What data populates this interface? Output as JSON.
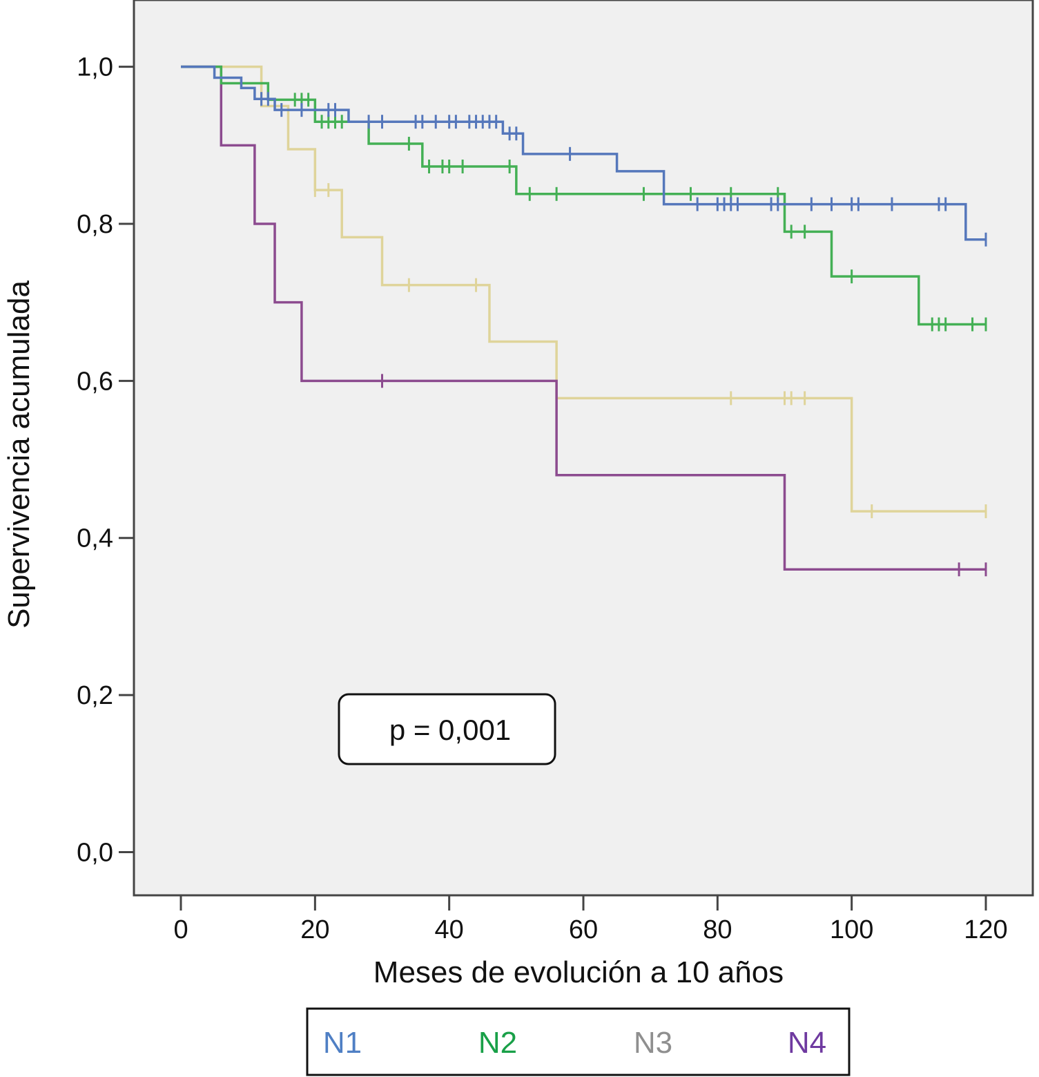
{
  "chart_data": {
    "type": "line",
    "subtype": "kaplan-meier",
    "title": "",
    "xlabel": "Meses de evolución a 10 años",
    "ylabel": "Supervivencia acumulada",
    "xlim": [
      -7,
      127
    ],
    "ylim": [
      -0.055,
      1.085
    ],
    "xticks": [
      0,
      20,
      40,
      60,
      80,
      100,
      120
    ],
    "yticks": [
      0.0,
      0.2,
      0.4,
      0.6,
      0.8,
      1.0
    ],
    "ytick_labels": [
      "0,0",
      "0,2",
      "0,4",
      "0,6",
      "0,8",
      "1,0"
    ],
    "xtick_labels": [
      "0",
      "20",
      "40",
      "60",
      "80",
      "100",
      "120"
    ],
    "plot_background": "#f0f0f0",
    "annotation": "p = 0,001",
    "series": [
      {
        "name": "N1",
        "color": "#5577bb",
        "legend_color": "#4f7fc4",
        "steps": [
          [
            0,
            1.0
          ],
          [
            5,
            0.986
          ],
          [
            9,
            0.973
          ],
          [
            11,
            0.959
          ],
          [
            14,
            0.945
          ],
          [
            25,
            0.93
          ],
          [
            48,
            0.915
          ],
          [
            51,
            0.889
          ],
          [
            65,
            0.867
          ],
          [
            72,
            0.825
          ],
          [
            117,
            0.78
          ],
          [
            120,
            0.78
          ]
        ],
        "censored": [
          [
            12,
            0.959
          ],
          [
            13,
            0.959
          ],
          [
            15,
            0.945
          ],
          [
            18,
            0.945
          ],
          [
            22,
            0.945
          ],
          [
            23,
            0.945
          ],
          [
            28,
            0.93
          ],
          [
            30,
            0.93
          ],
          [
            35,
            0.93
          ],
          [
            36,
            0.93
          ],
          [
            38,
            0.93
          ],
          [
            40,
            0.93
          ],
          [
            41,
            0.93
          ],
          [
            43,
            0.93
          ],
          [
            44,
            0.93
          ],
          [
            45,
            0.93
          ],
          [
            46,
            0.93
          ],
          [
            47,
            0.93
          ],
          [
            49,
            0.915
          ],
          [
            50,
            0.915
          ],
          [
            58,
            0.889
          ],
          [
            77,
            0.825
          ],
          [
            80,
            0.825
          ],
          [
            81,
            0.825
          ],
          [
            82,
            0.825
          ],
          [
            83,
            0.825
          ],
          [
            88,
            0.825
          ],
          [
            89,
            0.825
          ],
          [
            94,
            0.825
          ],
          [
            97,
            0.825
          ],
          [
            100,
            0.825
          ],
          [
            101,
            0.825
          ],
          [
            106,
            0.825
          ],
          [
            113,
            0.825
          ],
          [
            114,
            0.825
          ],
          [
            120,
            0.78
          ]
        ]
      },
      {
        "name": "N2",
        "color": "#44b055",
        "legend_color": "#19a048",
        "steps": [
          [
            0,
            1.0
          ],
          [
            6,
            0.979
          ],
          [
            13,
            0.958
          ],
          [
            20,
            0.93
          ],
          [
            28,
            0.902
          ],
          [
            36,
            0.873
          ],
          [
            50,
            0.838
          ],
          [
            90,
            0.79
          ],
          [
            97,
            0.733
          ],
          [
            110,
            0.672
          ],
          [
            120,
            0.672
          ]
        ],
        "censored": [
          [
            17,
            0.958
          ],
          [
            18,
            0.958
          ],
          [
            19,
            0.958
          ],
          [
            21,
            0.93
          ],
          [
            22,
            0.93
          ],
          [
            23,
            0.93
          ],
          [
            24,
            0.93
          ],
          [
            34,
            0.902
          ],
          [
            37,
            0.873
          ],
          [
            39,
            0.873
          ],
          [
            40,
            0.873
          ],
          [
            42,
            0.873
          ],
          [
            49,
            0.873
          ],
          [
            52,
            0.838
          ],
          [
            56,
            0.838
          ],
          [
            69,
            0.838
          ],
          [
            76,
            0.838
          ],
          [
            82,
            0.838
          ],
          [
            89,
            0.838
          ],
          [
            91,
            0.79
          ],
          [
            93,
            0.79
          ],
          [
            100,
            0.733
          ],
          [
            112,
            0.672
          ],
          [
            113,
            0.672
          ],
          [
            114,
            0.672
          ],
          [
            118,
            0.672
          ],
          [
            120,
            0.672
          ]
        ],
        "_": ""
      },
      {
        "name": "N3",
        "color": "#dfd49a",
        "legend_color": "#8f8f8f",
        "steps": [
          [
            0,
            1.0
          ],
          [
            12,
            0.95
          ],
          [
            16,
            0.895
          ],
          [
            20,
            0.843
          ],
          [
            24,
            0.783
          ],
          [
            30,
            0.722
          ],
          [
            46,
            0.65
          ],
          [
            56,
            0.578
          ],
          [
            100,
            0.434
          ],
          [
            120,
            0.434
          ]
        ],
        "censored": [
          [
            20,
            0.843
          ],
          [
            22,
            0.843
          ],
          [
            34,
            0.722
          ],
          [
            44,
            0.722
          ],
          [
            82,
            0.578
          ],
          [
            90,
            0.578
          ],
          [
            91,
            0.578
          ],
          [
            93,
            0.578
          ],
          [
            103,
            0.434
          ],
          [
            120,
            0.434
          ]
        ]
      },
      {
        "name": "N4",
        "color": "#8c4b8f",
        "legend_color": "#6f3aa0",
        "steps": [
          [
            0,
            1.0
          ],
          [
            6,
            0.9
          ],
          [
            11,
            0.8
          ],
          [
            14,
            0.7
          ],
          [
            18,
            0.6
          ],
          [
            56,
            0.48
          ],
          [
            90,
            0.36
          ],
          [
            120,
            0.36
          ]
        ],
        "censored": [
          [
            30,
            0.6
          ],
          [
            116,
            0.36
          ],
          [
            120,
            0.36
          ]
        ]
      }
    ]
  },
  "legend": {
    "items": [
      "N1",
      "N2",
      "N3",
      "N4"
    ]
  },
  "annotation_box": {
    "text": "p = 0,001"
  }
}
